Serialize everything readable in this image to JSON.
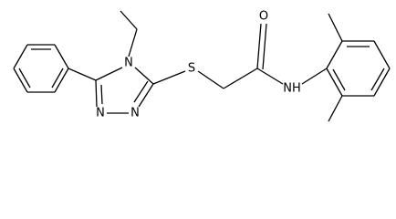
{
  "atoms": [
    {
      "label": "N"
    },
    {
      "label": "N"
    },
    {
      "label": "N"
    },
    {
      "label": "S"
    },
    {
      "label": "O"
    },
    {
      "label": "NH"
    }
  ]
}
